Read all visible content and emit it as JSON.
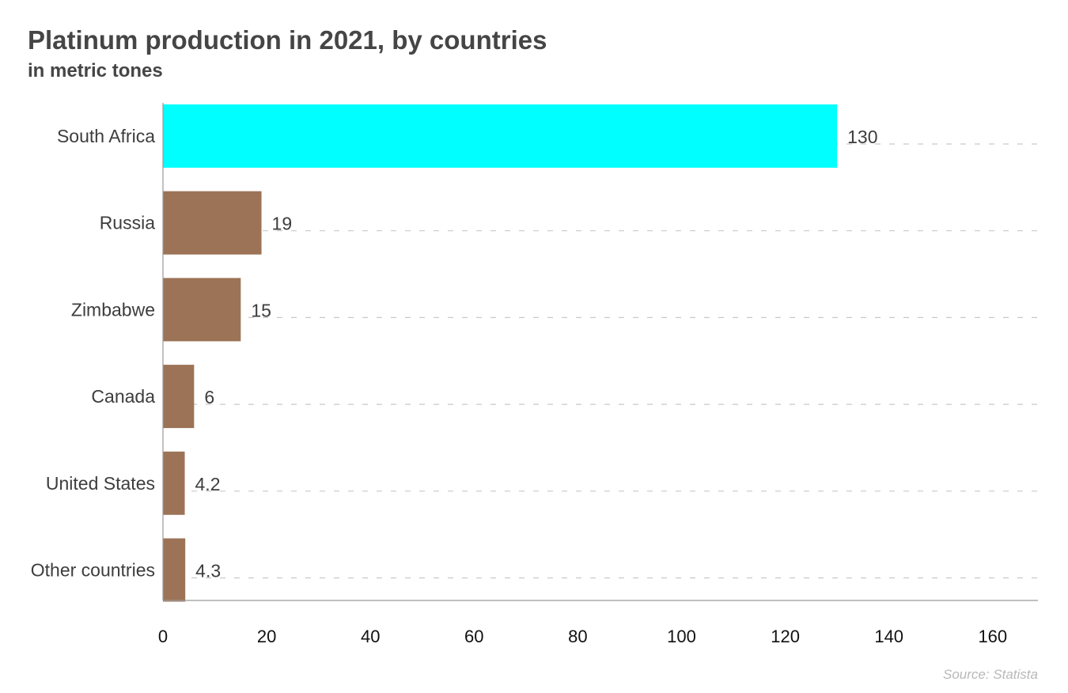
{
  "colors": {
    "highlight": "#00FFFF",
    "bar": "#9C7356",
    "grid": "#c9c9c9",
    "axis": "#999999"
  },
  "source": "Source: Statista",
  "chart_data": {
    "type": "bar",
    "orientation": "horizontal",
    "title": "Platinum production in 2021, by countries",
    "subtitle": "in metric tones",
    "categories": [
      "South Africa",
      "Russia",
      "Zimbabwe",
      "Canada",
      "United States",
      "Other countries"
    ],
    "values": [
      130,
      19,
      15,
      6,
      4.2,
      4.3
    ],
    "value_labels": [
      "130",
      "19",
      "15",
      "6",
      "4.2",
      "4.3"
    ],
    "highlight_index": 0,
    "xlabel": "",
    "ylabel": "",
    "xlim": [
      0,
      160
    ],
    "xticks": [
      0,
      20,
      40,
      60,
      80,
      100,
      120,
      140,
      160
    ],
    "grid": "dashed horizontal per category",
    "legend": "none"
  }
}
